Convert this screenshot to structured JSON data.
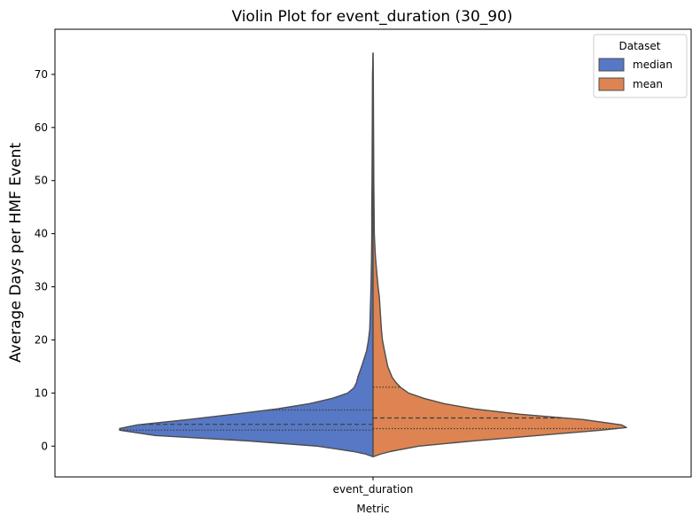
{
  "chart_data": {
    "type": "violin",
    "title": "Violin Plot for event_duration (30_90)",
    "xlabel": "Metric",
    "ylabel": "Average Days per HMF Event",
    "categories": [
      "event_duration"
    ],
    "ylim": [
      -5.8,
      78.5
    ],
    "yticks": [
      0,
      10,
      20,
      30,
      40,
      50,
      60,
      70
    ],
    "grid": false,
    "legend": {
      "title": "Dataset",
      "position": "top-right"
    },
    "series": [
      {
        "name": "median",
        "color": "#5778c5",
        "side": "left",
        "density_profile": [
          [
            -2.0,
            0.0
          ],
          [
            -1.5,
            0.03
          ],
          [
            -1.0,
            0.08
          ],
          [
            0.0,
            0.22
          ],
          [
            1.0,
            0.5
          ],
          [
            2.0,
            0.86
          ],
          [
            3.0,
            1.0
          ],
          [
            3.3,
            1.0
          ],
          [
            4.0,
            0.93
          ],
          [
            5.0,
            0.73
          ],
          [
            6.0,
            0.55
          ],
          [
            7.0,
            0.38
          ],
          [
            8.0,
            0.25
          ],
          [
            9.0,
            0.16
          ],
          [
            10.0,
            0.1
          ],
          [
            11.0,
            0.075
          ],
          [
            12.0,
            0.065
          ],
          [
            13.0,
            0.06
          ],
          [
            15.0,
            0.045
          ],
          [
            18.0,
            0.025
          ],
          [
            20.0,
            0.018
          ],
          [
            22.0,
            0.013
          ],
          [
            25.0,
            0.011
          ],
          [
            30.0,
            0.008
          ],
          [
            35.0,
            0.006
          ],
          [
            40.0,
            0.005
          ],
          [
            45.0,
            0.005
          ],
          [
            50.0,
            0.004
          ],
          [
            60.0,
            0.003
          ],
          [
            70.0,
            0.002
          ],
          [
            74.0,
            0.0
          ]
        ],
        "quartiles": [
          3.0,
          4.1,
          6.8
        ]
      },
      {
        "name": "mean",
        "color": "#dd8452",
        "side": "right",
        "density_profile": [
          [
            -2.0,
            0.0
          ],
          [
            -1.5,
            0.03
          ],
          [
            -1.0,
            0.07
          ],
          [
            0.0,
            0.18
          ],
          [
            1.0,
            0.4
          ],
          [
            2.0,
            0.65
          ],
          [
            3.0,
            0.9
          ],
          [
            3.5,
            1.0
          ],
          [
            4.0,
            0.98
          ],
          [
            5.0,
            0.83
          ],
          [
            6.0,
            0.58
          ],
          [
            7.0,
            0.4
          ],
          [
            8.0,
            0.28
          ],
          [
            9.0,
            0.2
          ],
          [
            10.0,
            0.14
          ],
          [
            11.0,
            0.11
          ],
          [
            12.0,
            0.09
          ],
          [
            13.0,
            0.075
          ],
          [
            15.0,
            0.058
          ],
          [
            18.0,
            0.045
          ],
          [
            20.0,
            0.037
          ],
          [
            22.0,
            0.033
          ],
          [
            25.0,
            0.029
          ],
          [
            28.0,
            0.025
          ],
          [
            30.0,
            0.02
          ],
          [
            33.0,
            0.014
          ],
          [
            36.0,
            0.009
          ],
          [
            40.0,
            0.005
          ],
          [
            45.0,
            0.004
          ],
          [
            50.0,
            0.003
          ],
          [
            60.0,
            0.002
          ],
          [
            70.0,
            0.001
          ],
          [
            74.0,
            0.0
          ]
        ],
        "quartiles": [
          3.3,
          5.3,
          11.1
        ]
      }
    ]
  }
}
